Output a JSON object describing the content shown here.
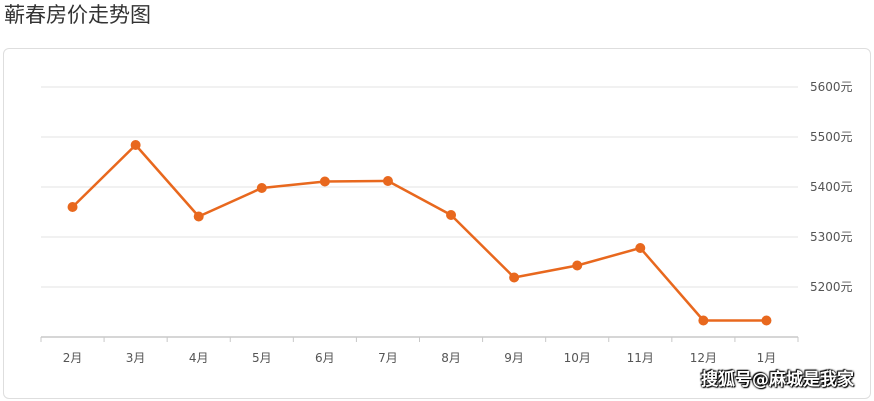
{
  "page": {
    "title": "蕲春房价走势图",
    "watermark": "搜狐号@麻城是我家"
  },
  "colors": {
    "line": "#e8681e",
    "grid": "#e3e3e3",
    "axis": "#c8c8c8"
  },
  "chart_data": {
    "type": "line",
    "title": "",
    "xlabel": "",
    "ylabel": "",
    "categories": [
      "2月",
      "3月",
      "4月",
      "5月",
      "6月",
      "7月",
      "8月",
      "9月",
      "10月",
      "11月",
      "12月",
      "1月"
    ],
    "series": [
      {
        "values": [
          5360,
          5484,
          5341,
          5398,
          5411,
          5412,
          5344,
          5219,
          5243,
          5278,
          5133,
          5133
        ]
      }
    ],
    "y_ticks": [
      5200,
      5300,
      5400,
      5500,
      5600
    ],
    "y_tick_labels": [
      "5200元",
      "5300元",
      "5400元",
      "5500元",
      "5600元"
    ],
    "ylim": [
      5100,
      5600
    ],
    "y_axis_position": "right",
    "grid": true,
    "legend": "none"
  }
}
